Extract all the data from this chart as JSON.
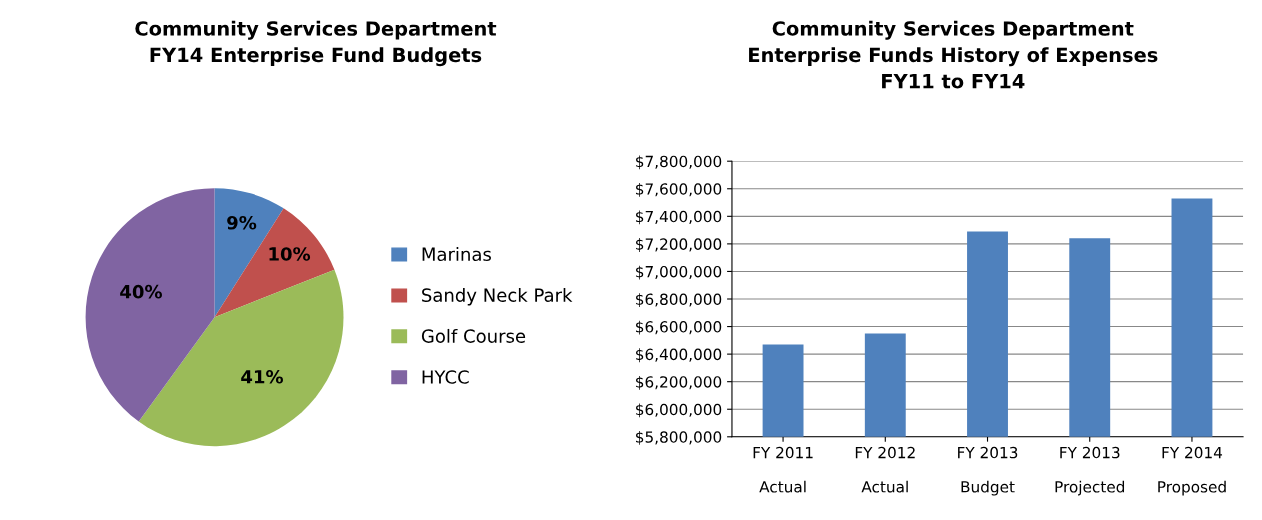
{
  "chart_data": [
    {
      "type": "pie",
      "title": "Community Services Department\nFY14 Enterprise Fund Budgets",
      "categories": [
        "Marinas",
        "Sandy Neck Park",
        "Golf Course",
        "HYCC"
      ],
      "values": [
        9,
        10,
        41,
        40
      ],
      "colors": [
        "#4f81bd",
        "#c0504d",
        "#9bbb59",
        "#8064a2"
      ],
      "value_labels": [
        "9%",
        "10%",
        "41%",
        "40%"
      ],
      "legend": "right"
    },
    {
      "type": "bar",
      "title": "Community Services Department\nEnterprise Funds History of Expenses\nFY11 to FY14",
      "categories": [
        "FY 2011\n\nActual",
        "FY 2012\n\nActual",
        "FY 2013\n\nBudget",
        "FY 2013\n\nProjected",
        "FY 2014\n\nProposed"
      ],
      "values": [
        6470000,
        6550000,
        7290000,
        7240000,
        7530000
      ],
      "color": "#4f81bd",
      "ylim": [
        5800000,
        7800000
      ],
      "yticks": [
        {
          "value": 5800000,
          "label": "$5,800,000"
        },
        {
          "value": 6000000,
          "label": "$6,000,000"
        },
        {
          "value": 6200000,
          "label": "$6,200,000"
        },
        {
          "value": 6400000,
          "label": "$6,400,000"
        },
        {
          "value": 6600000,
          "label": "$6,600,000"
        },
        {
          "value": 6800000,
          "label": "$6,800,000"
        },
        {
          "value": 7000000,
          "label": "$7,000,000"
        },
        {
          "value": 7200000,
          "label": "$7,200,000"
        },
        {
          "value": 7400000,
          "label": "$7,400,000"
        },
        {
          "value": 7600000,
          "label": "$7,600,000"
        },
        {
          "value": 7800000,
          "label": "$7,800,000"
        }
      ],
      "grid": "y"
    }
  ]
}
